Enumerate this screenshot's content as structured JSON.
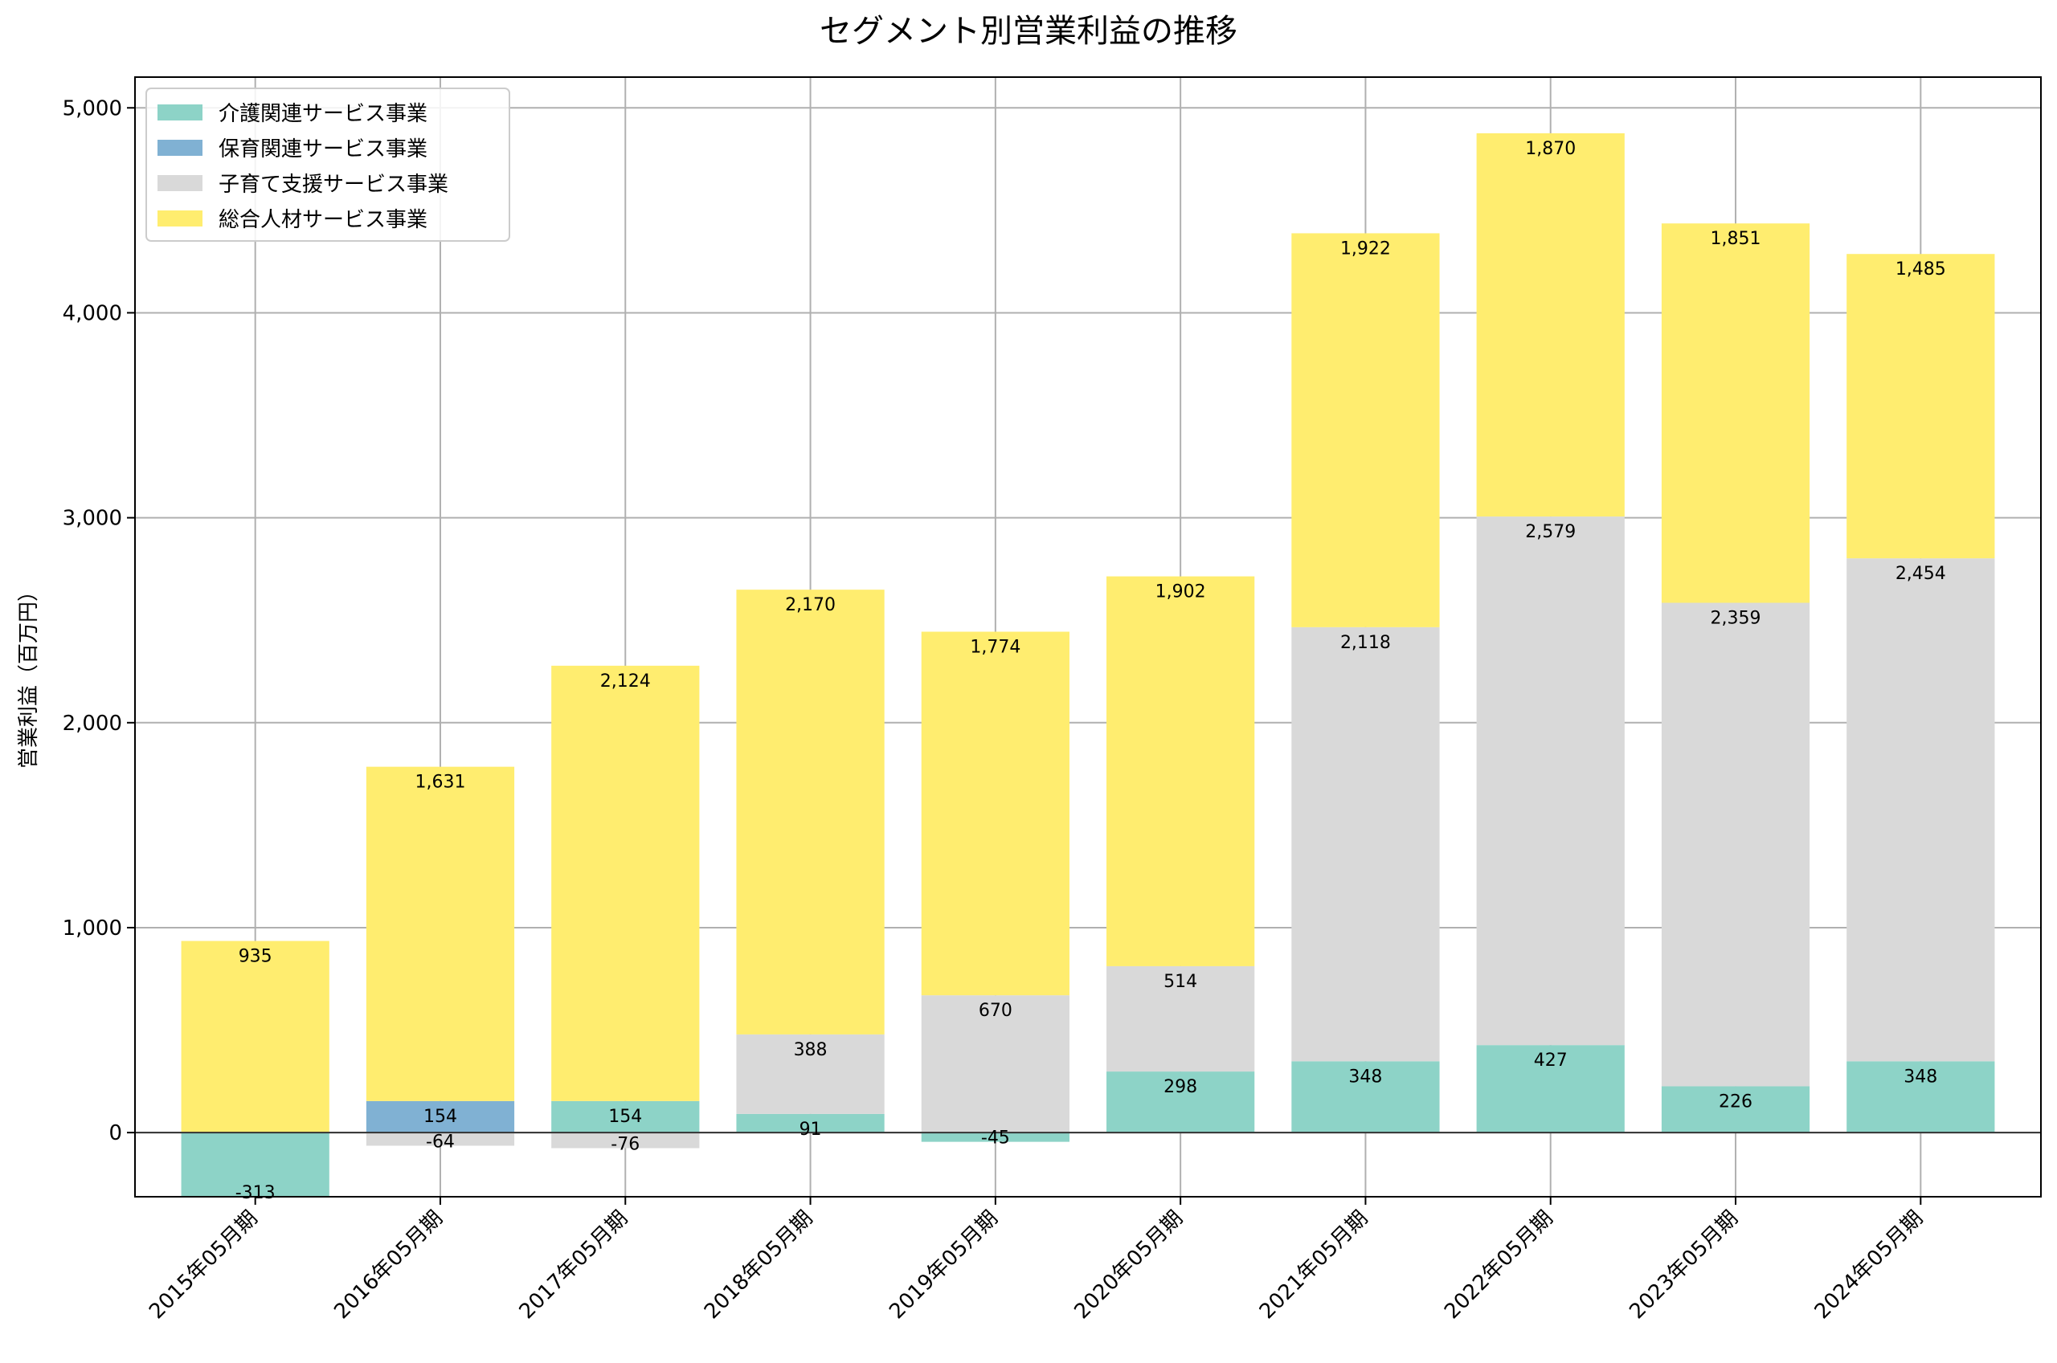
{
  "chart_data": {
    "type": "bar",
    "stacked": true,
    "title": "セグメント別営業利益の推移",
    "xlabel": "",
    "ylabel": "営業利益（百万円）",
    "ylim": [
      -313,
      5150
    ],
    "yticks": [
      0,
      1000,
      2000,
      3000,
      4000,
      5000
    ],
    "ytick_labels": [
      "0",
      "1,000",
      "2,000",
      "3,000",
      "4,000",
      "5,000"
    ],
    "grid": true,
    "legend_position": "top-left",
    "categories": [
      "2015年05月期",
      "2016年05月期",
      "2017年05月期",
      "2018年05月期",
      "2019年05月期",
      "2020年05月期",
      "2021年05月期",
      "2022年05月期",
      "2023年05月期",
      "2024年05月期"
    ],
    "series": [
      {
        "name": "介護関連サービス事業",
        "color": "#8dd3c7",
        "values": [
          -313,
          null,
          154,
          91,
          -45,
          298,
          348,
          427,
          226,
          348
        ]
      },
      {
        "name": "保育関連サービス事業",
        "color": "#80b1d3",
        "values": [
          null,
          154,
          null,
          null,
          null,
          null,
          null,
          null,
          null,
          null
        ]
      },
      {
        "name": "子育て支援サービス事業",
        "color": "#d9d9d9",
        "values": [
          null,
          -64,
          -76,
          388,
          670,
          514,
          2118,
          2579,
          2359,
          2454
        ]
      },
      {
        "name": "総合人材サービス事業",
        "color": "#ffed6f",
        "values": [
          935,
          1631,
          2124,
          2170,
          1774,
          1902,
          1922,
          1870,
          1851,
          1485
        ]
      }
    ],
    "data_labels": [
      [
        "-313",
        "",
        "154",
        "91",
        "-45",
        "298",
        "348",
        "427",
        "226",
        "348"
      ],
      [
        "",
        "154",
        "",
        "",
        "",
        "",
        "",
        "",
        "",
        ""
      ],
      [
        "",
        "-64",
        "-76",
        "388",
        "670",
        "514",
        "2,118",
        "2,579",
        "2,359",
        "2,454"
      ],
      [
        "935",
        "1,631",
        "2,124",
        "2,170",
        "1,774",
        "1,902",
        "1,922",
        "1,870",
        "1,851",
        "1,485"
      ]
    ]
  }
}
